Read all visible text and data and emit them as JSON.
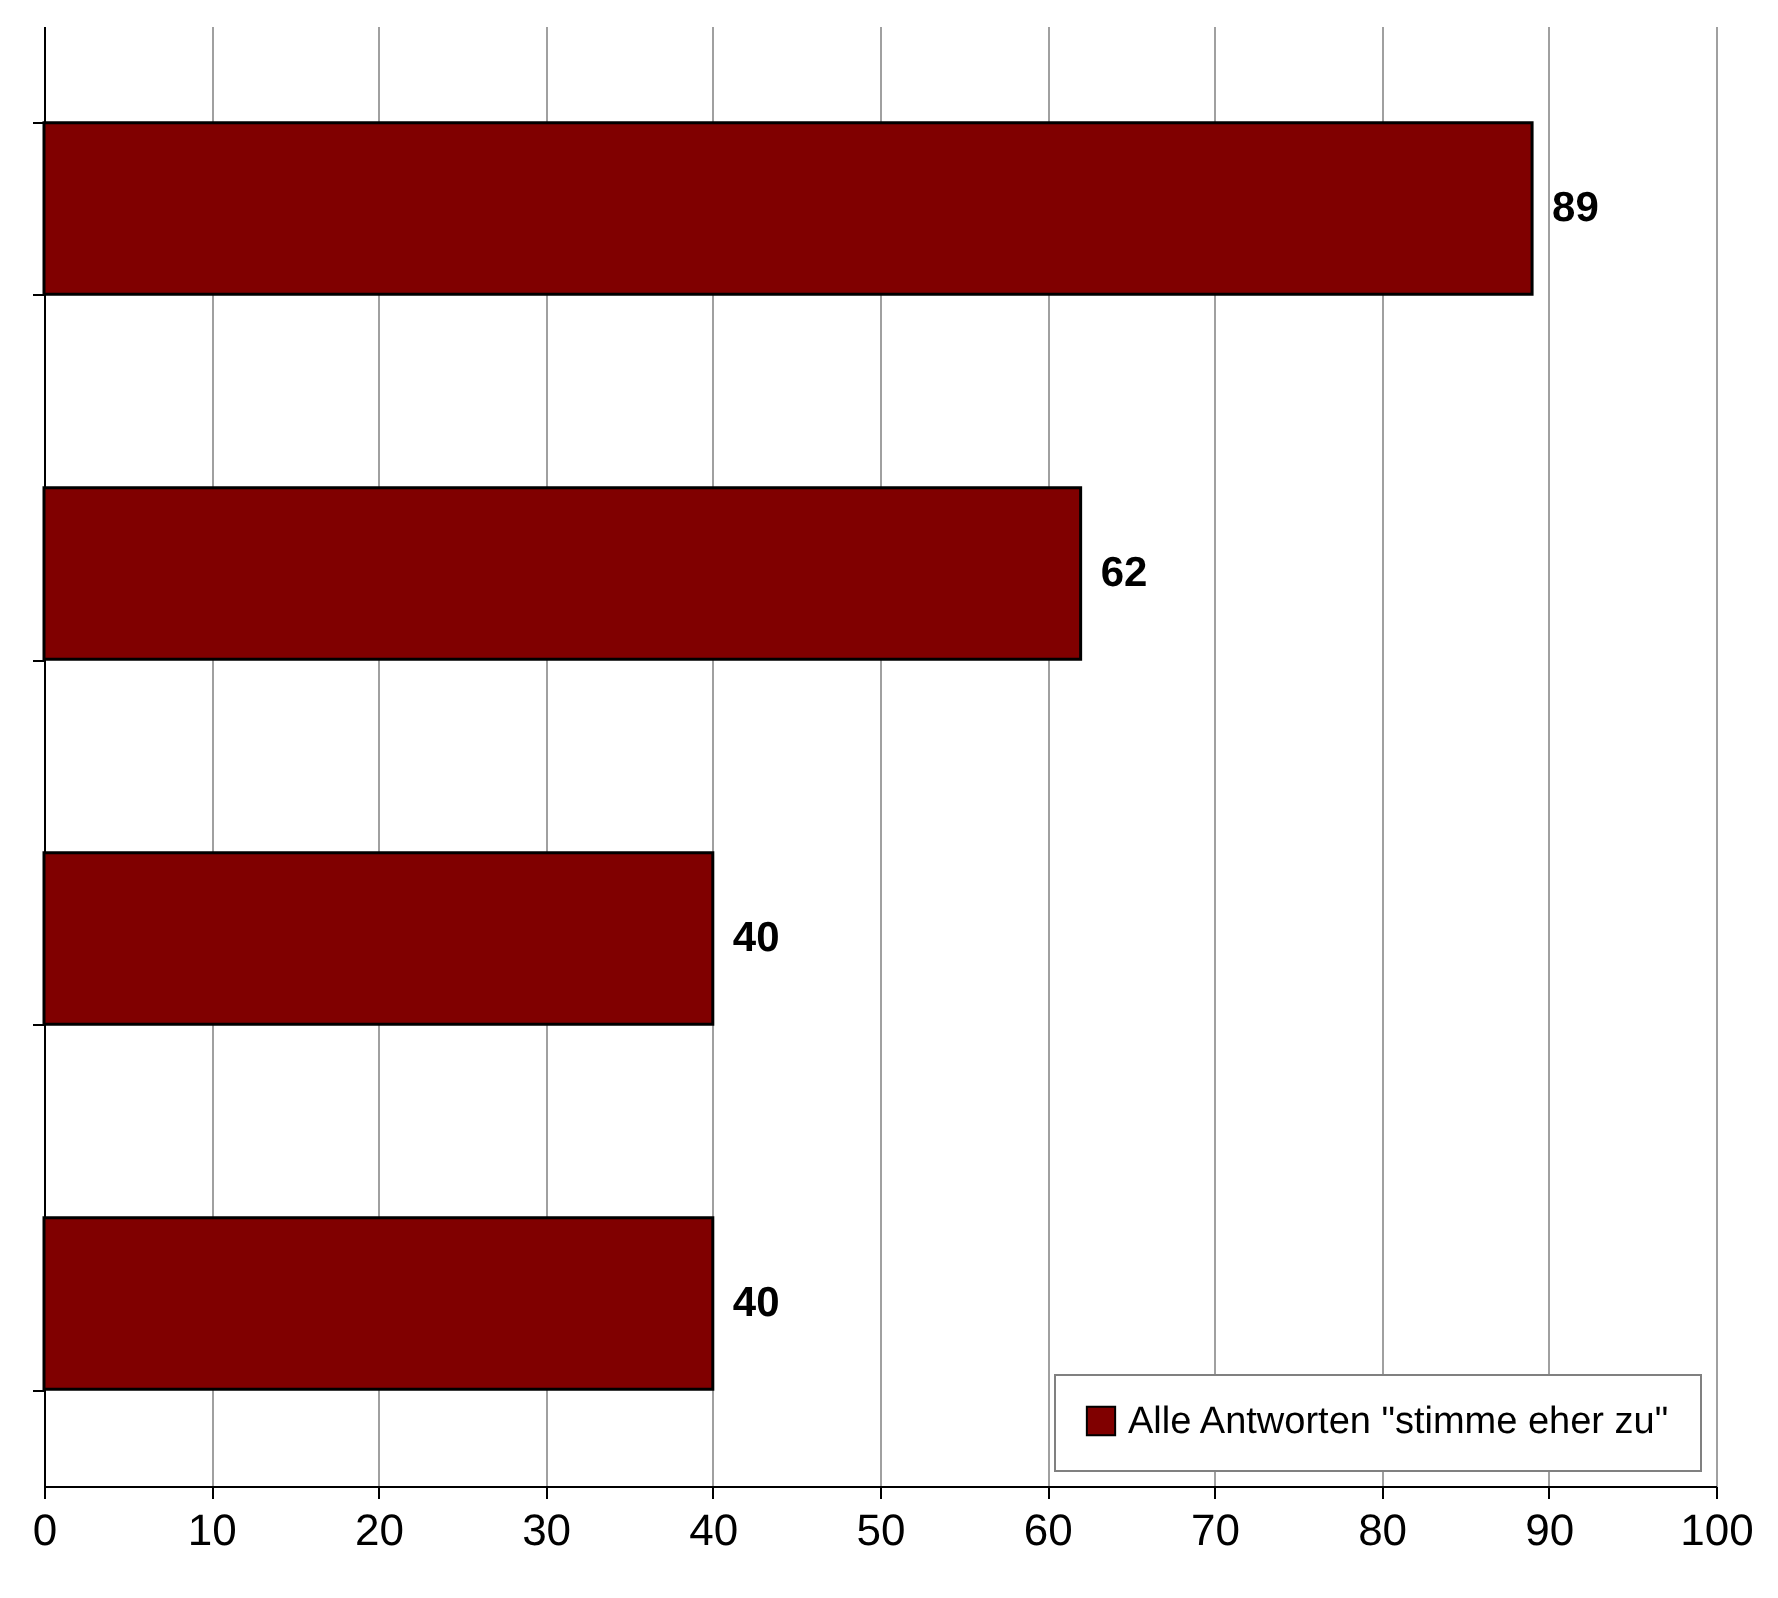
{
  "chart_data": {
    "type": "bar",
    "orientation": "horizontal",
    "categories": [
      null,
      null,
      null,
      null
    ],
    "series": [
      {
        "name": "Alle Antworten \"stimme eher zu\"",
        "color": "#800000",
        "values": [
          89,
          62,
          40,
          40
        ]
      }
    ],
    "xlim": [
      0,
      100
    ],
    "xticks": [
      0,
      10,
      20,
      30,
      40,
      50,
      60,
      70,
      80,
      90,
      100
    ],
    "grid": "x",
    "legend": "bottom right",
    "data_labels": true
  }
}
